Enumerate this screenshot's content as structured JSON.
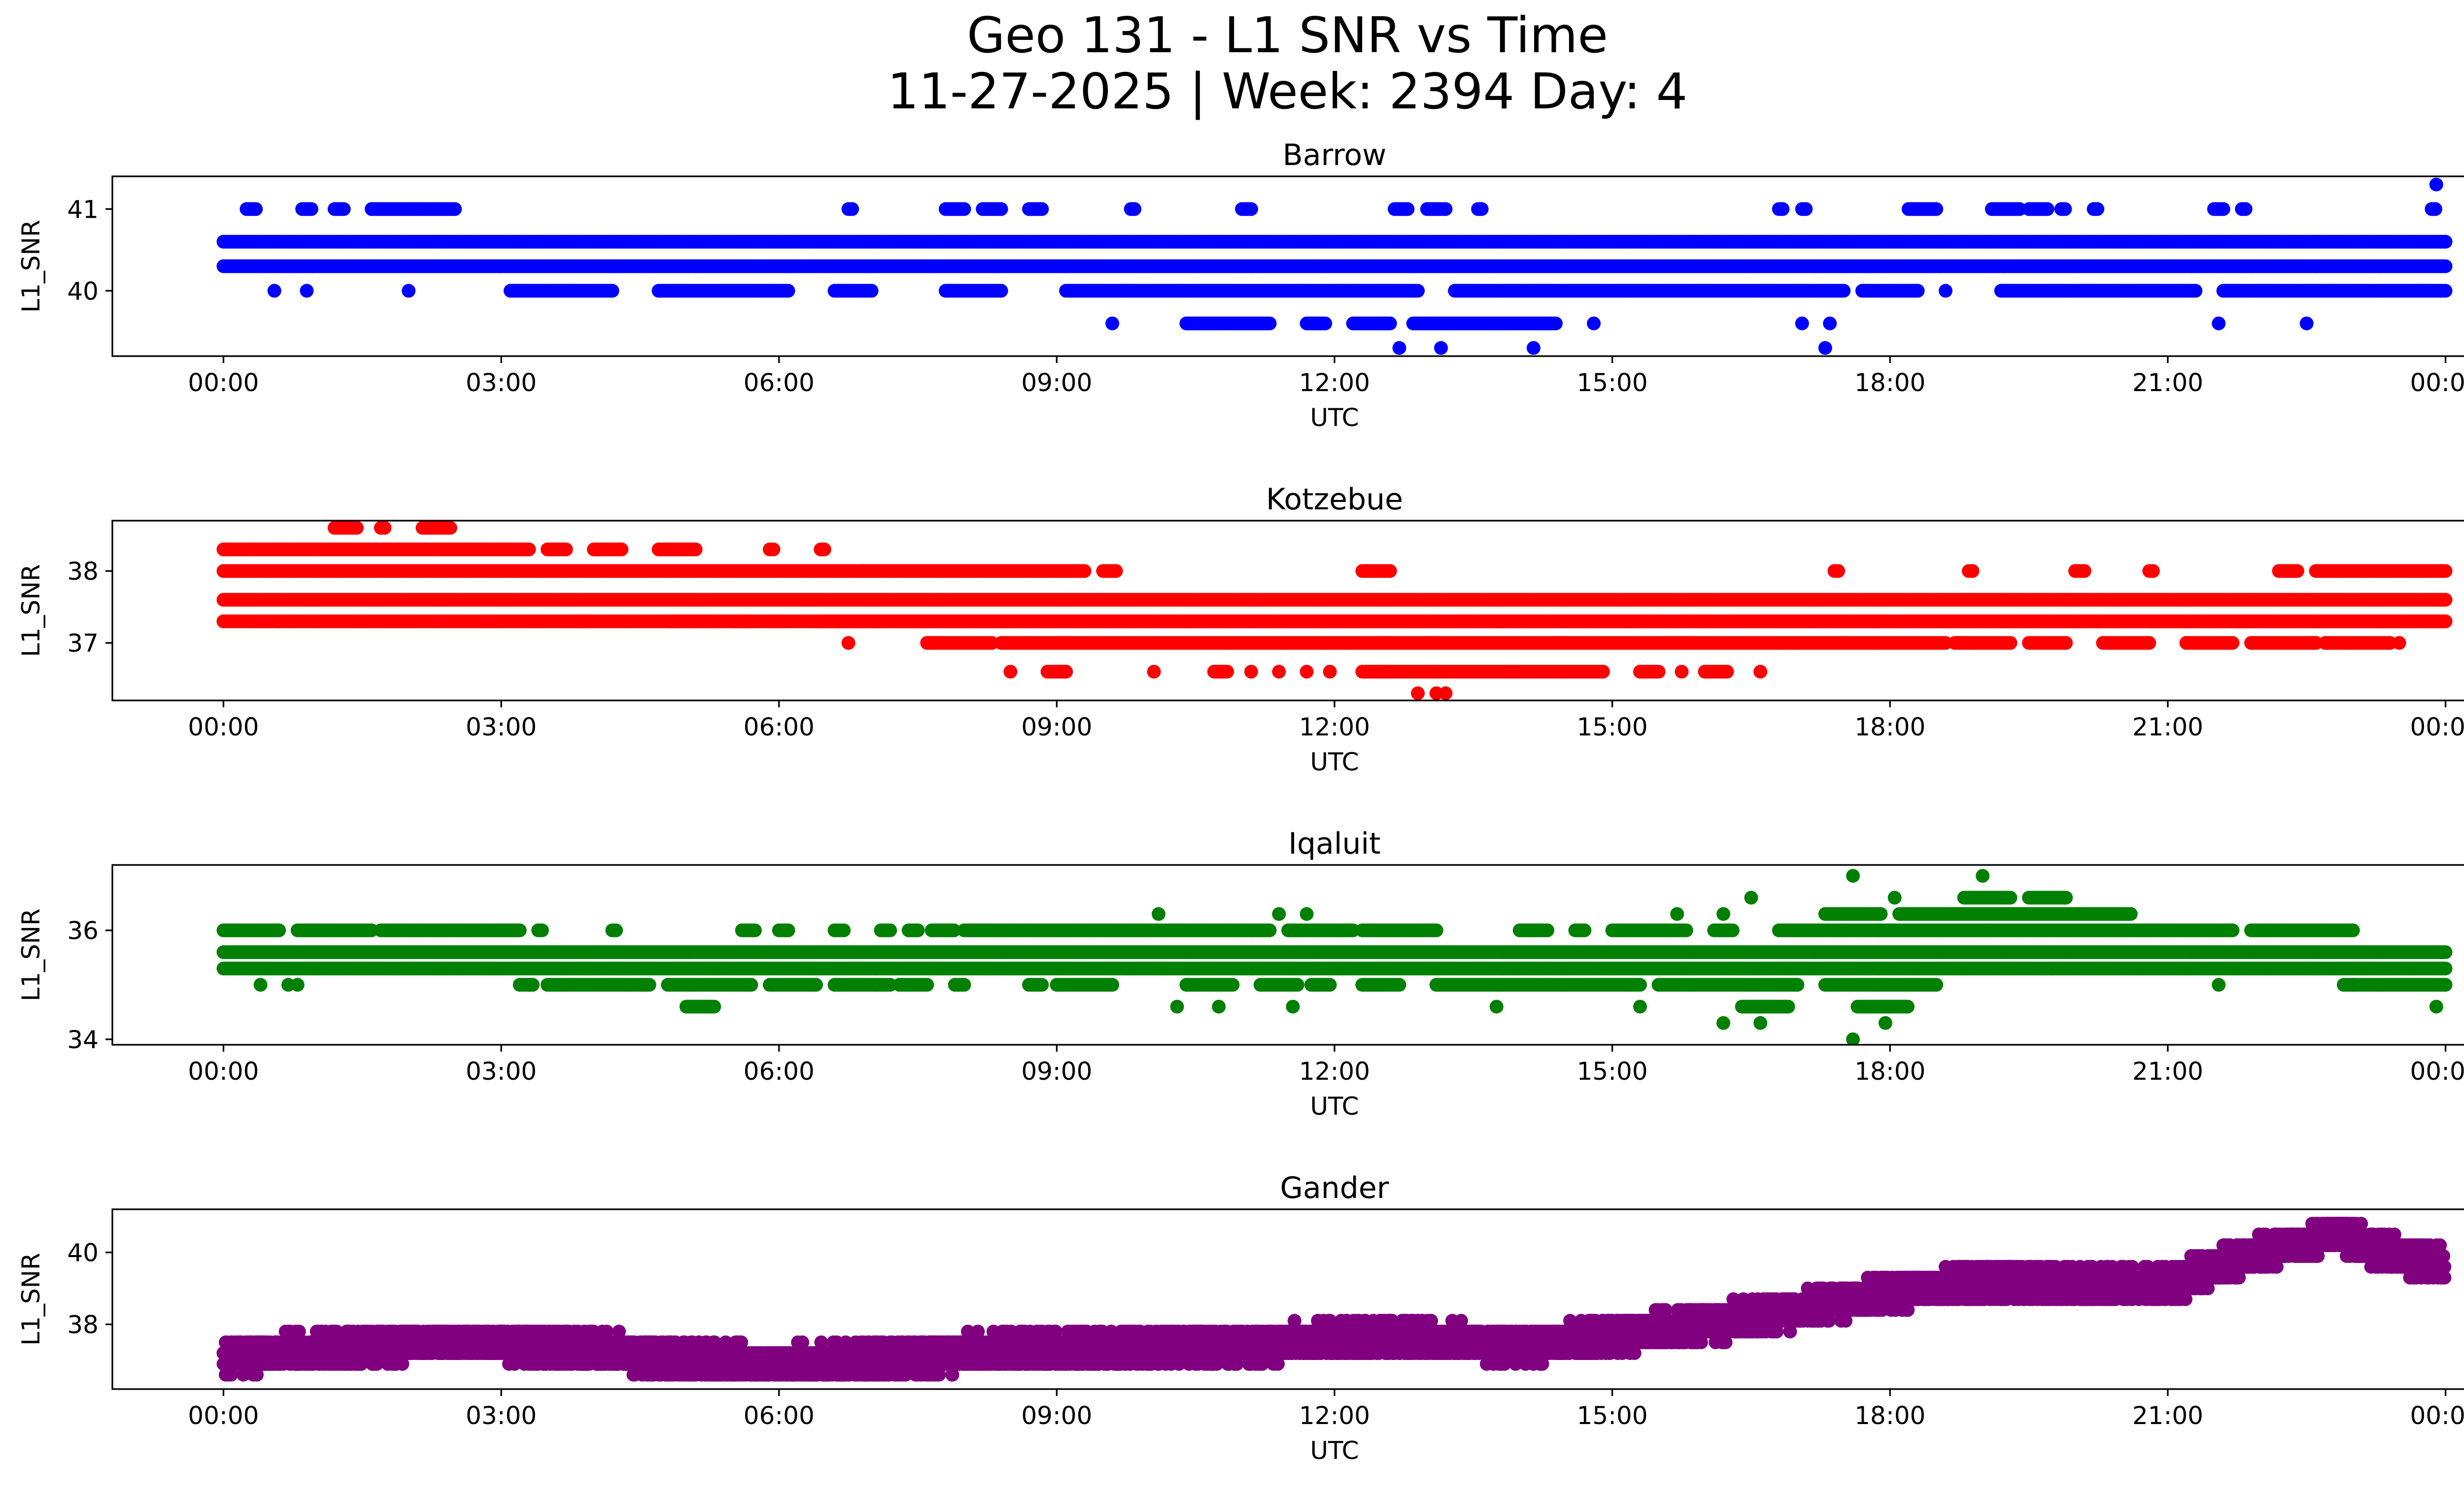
{
  "title_line1": "Geo 131 - L1 SNR vs Time",
  "title_line2": "11-27-2025 | Week: 2394 Day: 4",
  "chart_data": [
    {
      "type": "scatter",
      "title": "Barrow",
      "xlabel": "UTC",
      "ylabel": "L1_SNR",
      "color": "#0000ff",
      "xlim": [
        -1.2,
        25.2
      ],
      "ylim": [
        39.2,
        41.4
      ],
      "xticks": [
        0,
        3,
        6,
        9,
        12,
        15,
        18,
        21,
        24
      ],
      "xtick_labels": [
        "00:00",
        "03:00",
        "06:00",
        "09:00",
        "12:00",
        "15:00",
        "18:00",
        "21:00",
        "00:00"
      ],
      "yticks": [
        40,
        41
      ],
      "ytick_labels": [
        "40",
        "41"
      ],
      "levels": [
        40.3,
        40.6
      ],
      "bands": [
        {
          "y": 41.0,
          "segments": [
            [
              0.25,
              0.35
            ],
            [
              0.85,
              0.95
            ],
            [
              1.2,
              1.3
            ],
            [
              1.6,
              2.1
            ],
            [
              2.1,
              2.5
            ],
            [
              6.75,
              6.8
            ],
            [
              7.8,
              8.0
            ],
            [
              8.2,
              8.4
            ],
            [
              8.7,
              8.85
            ],
            [
              9.8,
              9.85
            ],
            [
              11.0,
              11.1
            ],
            [
              12.65,
              12.8
            ],
            [
              13.0,
              13.2
            ],
            [
              13.55,
              13.6
            ],
            [
              16.8,
              16.85
            ],
            [
              17.05,
              17.1
            ],
            [
              18.2,
              18.5
            ],
            [
              19.1,
              19.4
            ],
            [
              19.5,
              19.7
            ],
            [
              19.85,
              19.9
            ],
            [
              20.2,
              20.25
            ],
            [
              21.5,
              21.6
            ],
            [
              21.8,
              21.85
            ],
            [
              23.85,
              23.9
            ]
          ]
        },
        {
          "y": 40.0,
          "segments": [
            [
              3.1,
              4.2
            ],
            [
              4.7,
              6.1
            ],
            [
              6.6,
              7.0
            ],
            [
              7.8,
              8.4
            ],
            [
              9.1,
              12.9
            ],
            [
              13.3,
              17.5
            ],
            [
              17.7,
              18.3
            ],
            [
              19.2,
              21.3
            ],
            [
              21.6,
              24.0
            ]
          ]
        },
        {
          "y": 39.6,
          "segments": [
            [
              10.4,
              11.3
            ],
            [
              11.7,
              11.9
            ],
            [
              12.2,
              12.6
            ],
            [
              12.85,
              14.4
            ]
          ]
        }
      ],
      "points": [
        {
          "x": 0.55,
          "y": 40.0
        },
        {
          "x": 0.9,
          "y": 40.0
        },
        {
          "x": 2.0,
          "y": 40.0
        },
        {
          "x": 9.6,
          "y": 39.6
        },
        {
          "x": 14.8,
          "y": 39.6
        },
        {
          "x": 17.05,
          "y": 39.6
        },
        {
          "x": 17.35,
          "y": 39.6
        },
        {
          "x": 21.55,
          "y": 39.6
        },
        {
          "x": 22.5,
          "y": 39.6
        },
        {
          "x": 12.7,
          "y": 39.3
        },
        {
          "x": 13.15,
          "y": 39.3
        },
        {
          "x": 14.15,
          "y": 39.3
        },
        {
          "x": 17.3,
          "y": 39.3
        },
        {
          "x": 23.9,
          "y": 41.3
        },
        {
          "x": 18.6,
          "y": 40.0
        }
      ]
    },
    {
      "type": "scatter",
      "title": "Kotzebue",
      "xlabel": "UTC",
      "ylabel": "L1_SNR",
      "color": "#ff0000",
      "xlim": [
        -1.2,
        25.2
      ],
      "ylim": [
        36.2,
        38.7
      ],
      "xticks": [
        0,
        3,
        6,
        9,
        12,
        15,
        18,
        21,
        24
      ],
      "xtick_labels": [
        "00:00",
        "03:00",
        "06:00",
        "09:00",
        "12:00",
        "15:00",
        "18:00",
        "21:00",
        "00:00"
      ],
      "yticks": [
        37,
        38
      ],
      "ytick_labels": [
        "37",
        "38"
      ],
      "levels": [
        37.6,
        37.3
      ],
      "bands": [
        {
          "y": 38.3,
          "segments": [
            [
              0.0,
              3.3
            ],
            [
              3.5,
              3.7
            ],
            [
              4.0,
              4.3
            ],
            [
              4.7,
              5.1
            ],
            [
              5.9,
              5.95
            ],
            [
              6.45,
              6.5
            ]
          ]
        },
        {
          "y": 38.0,
          "segments": [
            [
              0.0,
              6.9
            ],
            [
              6.9,
              9.3
            ],
            [
              9.5,
              9.65
            ],
            [
              12.3,
              12.6
            ],
            [
              17.4,
              17.45
            ],
            [
              18.85,
              18.9
            ],
            [
              20.0,
              20.1
            ],
            [
              20.8,
              20.85
            ],
            [
              22.2,
              22.4
            ],
            [
              22.6,
              24.0
            ]
          ]
        },
        {
          "y": 38.6,
          "segments": [
            [
              1.2,
              1.45
            ],
            [
              1.7,
              1.75
            ],
            [
              2.15,
              2.45
            ]
          ]
        },
        {
          "y": 37.0,
          "segments": [
            [
              7.6,
              8.3
            ],
            [
              8.4,
              18.6
            ],
            [
              18.7,
              19.3
            ],
            [
              19.5,
              19.9
            ],
            [
              20.3,
              20.8
            ],
            [
              21.2,
              21.7
            ],
            [
              21.9,
              22.6
            ],
            [
              22.7,
              23.4
            ]
          ]
        },
        {
          "y": 36.6,
          "segments": [
            [
              8.9,
              9.1
            ],
            [
              10.7,
              10.85
            ],
            [
              12.3,
              14.9
            ],
            [
              15.3,
              15.5
            ],
            [
              16.0,
              16.25
            ]
          ]
        },
        {
          "y": 37.3,
          "segments": [
            [
              3.8,
              3.95
            ],
            [
              4.8,
              5.3
            ],
            [
              5.5,
              5.7
            ],
            [
              5.9,
              6.0
            ],
            [
              6.4,
              24.0
            ]
          ]
        }
      ],
      "points": [
        {
          "x": 0.6,
          "y": 37.3
        },
        {
          "x": 0.75,
          "y": 37.3
        },
        {
          "x": 6.75,
          "y": 37.0
        },
        {
          "x": 8.5,
          "y": 36.6
        },
        {
          "x": 10.05,
          "y": 36.6
        },
        {
          "x": 11.1,
          "y": 36.6
        },
        {
          "x": 11.4,
          "y": 36.6
        },
        {
          "x": 11.7,
          "y": 36.6
        },
        {
          "x": 11.95,
          "y": 36.6
        },
        {
          "x": 15.75,
          "y": 36.6
        },
        {
          "x": 16.6,
          "y": 36.6
        },
        {
          "x": 12.9,
          "y": 36.3
        },
        {
          "x": 13.1,
          "y": 36.3
        },
        {
          "x": 13.2,
          "y": 36.3
        },
        {
          "x": 23.5,
          "y": 37.0
        }
      ]
    },
    {
      "type": "scatter",
      "title": "Iqaluit",
      "xlabel": "UTC",
      "ylabel": "L1_SNR",
      "color": "#008000",
      "xlim": [
        -1.2,
        25.2
      ],
      "ylim": [
        33.9,
        37.2
      ],
      "xticks": [
        0,
        3,
        6,
        9,
        12,
        15,
        18,
        21,
        24
      ],
      "xtick_labels": [
        "00:00",
        "03:00",
        "06:00",
        "09:00",
        "12:00",
        "15:00",
        "18:00",
        "21:00",
        "00:00"
      ],
      "yticks": [
        34,
        36
      ],
      "ytick_labels": [
        "34",
        "36"
      ],
      "levels": [
        35.6,
        35.3
      ],
      "bands": [
        {
          "y": 36.0,
          "segments": [
            [
              0.0,
              0.6
            ],
            [
              0.8,
              1.6
            ],
            [
              1.7,
              3.2
            ],
            [
              3.4,
              3.45
            ],
            [
              4.2,
              4.25
            ],
            [
              5.6,
              5.75
            ],
            [
              6.0,
              6.1
            ],
            [
              6.6,
              6.7
            ],
            [
              7.1,
              7.2
            ],
            [
              7.4,
              7.5
            ],
            [
              7.65,
              7.9
            ],
            [
              8.0,
              11.3
            ],
            [
              11.5,
              12.2
            ],
            [
              12.3,
              13.1
            ],
            [
              14.0,
              14.3
            ],
            [
              14.6,
              14.7
            ],
            [
              15.0,
              15.8
            ],
            [
              16.1,
              16.3
            ],
            [
              16.8,
              21.7
            ],
            [
              21.9,
              23.0
            ]
          ]
        },
        {
          "y": 36.3,
          "segments": [
            [
              17.3,
              17.9
            ],
            [
              18.1,
              20.6
            ]
          ]
        },
        {
          "y": 36.6,
          "segments": [
            [
              18.8,
              19.3
            ],
            [
              19.5,
              19.9
            ]
          ]
        },
        {
          "y": 35.0,
          "segments": [
            [
              3.2,
              3.35
            ],
            [
              3.5,
              4.6
            ],
            [
              4.8,
              5.7
            ],
            [
              5.9,
              6.4
            ],
            [
              6.6,
              7.2
            ],
            [
              7.3,
              7.6
            ],
            [
              7.9,
              8.0
            ],
            [
              8.7,
              8.85
            ],
            [
              9.0,
              9.6
            ],
            [
              10.4,
              10.9
            ],
            [
              11.2,
              11.6
            ],
            [
              11.75,
              11.95
            ],
            [
              12.3,
              12.7
            ],
            [
              13.1,
              15.3
            ],
            [
              15.5,
              17.0
            ],
            [
              17.3,
              18.5
            ],
            [
              22.9,
              24.0
            ]
          ]
        },
        {
          "y": 34.6,
          "segments": [
            [
              5.0,
              5.3
            ],
            [
              16.4,
              16.9
            ],
            [
              17.65,
              18.2
            ]
          ]
        }
      ],
      "points": [
        {
          "x": 0.4,
          "y": 35.0
        },
        {
          "x": 0.7,
          "y": 35.0
        },
        {
          "x": 0.8,
          "y": 35.0
        },
        {
          "x": 3.3,
          "y": 35.0
        },
        {
          "x": 10.1,
          "y": 36.3
        },
        {
          "x": 11.4,
          "y": 36.3
        },
        {
          "x": 11.7,
          "y": 36.3
        },
        {
          "x": 16.5,
          "y": 36.6
        },
        {
          "x": 17.6,
          "y": 37.0
        },
        {
          "x": 18.05,
          "y": 36.6
        },
        {
          "x": 19.0,
          "y": 37.0
        },
        {
          "x": 10.3,
          "y": 34.6
        },
        {
          "x": 10.75,
          "y": 34.6
        },
        {
          "x": 11.55,
          "y": 34.6
        },
        {
          "x": 13.75,
          "y": 34.6
        },
        {
          "x": 15.3,
          "y": 34.6
        },
        {
          "x": 16.2,
          "y": 34.3
        },
        {
          "x": 16.6,
          "y": 34.3
        },
        {
          "x": 17.95,
          "y": 34.3
        },
        {
          "x": 17.6,
          "y": 34.0
        },
        {
          "x": 19.75,
          "y": 35.3
        },
        {
          "x": 21.55,
          "y": 35.0
        },
        {
          "x": 23.0,
          "y": 35.0
        },
        {
          "x": 23.9,
          "y": 34.6
        },
        {
          "x": 16.2,
          "y": 36.3
        },
        {
          "x": 15.7,
          "y": 36.3
        }
      ]
    },
    {
      "type": "scatter",
      "title": "Gander",
      "xlabel": "UTC",
      "ylabel": "L1_SNR",
      "color": "#800080",
      "xlim": [
        -1.2,
        25.2
      ],
      "ylim": [
        36.2,
        41.2
      ],
      "xticks": [
        0,
        3,
        6,
        9,
        12,
        15,
        18,
        21,
        24
      ],
      "xtick_labels": [
        "00:00",
        "03:00",
        "06:00",
        "09:00",
        "12:00",
        "15:00",
        "18:00",
        "21:00",
        "00:00"
      ],
      "yticks": [
        38,
        40
      ],
      "ytick_labels": [
        "38",
        "40"
      ],
      "trend": [
        [
          0.0,
          37.1
        ],
        [
          1.0,
          37.3
        ],
        [
          2.0,
          37.5
        ],
        [
          3.0,
          37.5
        ],
        [
          4.0,
          37.3
        ],
        [
          5.0,
          37.0
        ],
        [
          6.0,
          36.9
        ],
        [
          7.0,
          37.0
        ],
        [
          8.0,
          37.2
        ],
        [
          9.0,
          37.3
        ],
        [
          10.0,
          37.4
        ],
        [
          11.0,
          37.4
        ],
        [
          12.0,
          37.6
        ],
        [
          13.0,
          37.6
        ],
        [
          14.0,
          37.4
        ],
        [
          15.0,
          37.7
        ],
        [
          16.0,
          38.0
        ],
        [
          17.0,
          38.4
        ],
        [
          18.0,
          38.9
        ],
        [
          19.0,
          39.2
        ],
        [
          20.0,
          39.1
        ],
        [
          21.0,
          39.1
        ],
        [
          22.0,
          40.0
        ],
        [
          22.8,
          40.5
        ],
        [
          23.5,
          39.9
        ],
        [
          24.0,
          39.7
        ]
      ],
      "spread": 0.45,
      "quantum": 0.3
    }
  ]
}
